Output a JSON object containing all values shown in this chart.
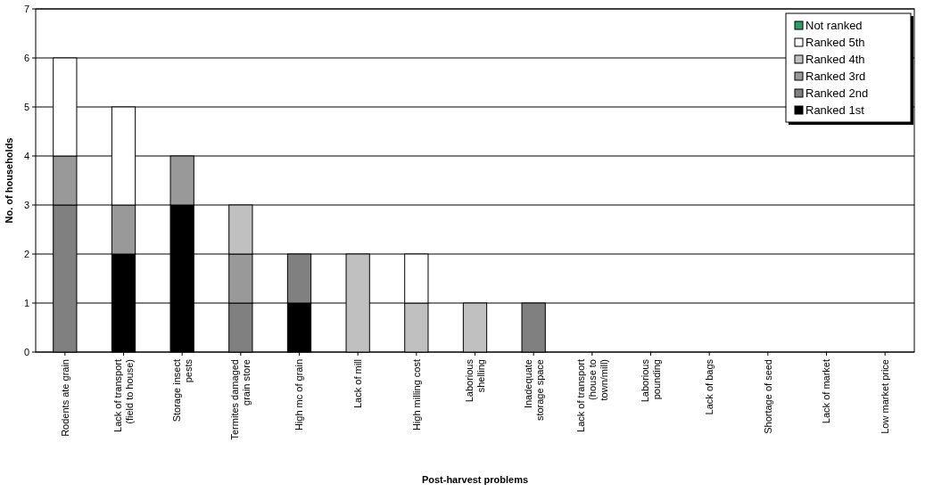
{
  "chart_data": {
    "type": "bar",
    "stacked": true,
    "xlabel": "Post-harvest problems",
    "ylabel": "No. of households",
    "categories": [
      "Rodents ate grain",
      "Lack of transport (field to house)",
      "Storage insect pests",
      "Termites damaged grain store",
      "High mc of grain",
      "Lack of mill",
      "High milling cost",
      "Laborious shelling",
      "Inadequate storage space",
      "Lack of transport (house to town/mill)",
      "Laborious pounding",
      "Lack of bags",
      "Shortage of seed",
      "Lack of market",
      "Low market price"
    ],
    "series": [
      {
        "name": "Ranked 1st",
        "color": "#000000",
        "values": [
          0,
          2,
          3,
          0,
          1,
          0,
          0,
          0,
          0,
          0,
          0,
          0,
          0,
          0,
          0
        ]
      },
      {
        "name": "Ranked 2nd",
        "color": "#808080",
        "values": [
          3,
          0,
          0,
          1,
          1,
          0,
          0,
          0,
          1,
          0,
          0,
          0,
          0,
          0,
          0
        ]
      },
      {
        "name": "Ranked 3rd",
        "color": "#999999",
        "values": [
          1,
          1,
          1,
          1,
          0,
          0,
          0,
          0,
          0,
          0,
          0,
          0,
          0,
          0,
          0
        ]
      },
      {
        "name": "Ranked 4th",
        "color": "#c0c0c0",
        "values": [
          0,
          0,
          0,
          1,
          0,
          2,
          1,
          1,
          0,
          0,
          0,
          0,
          0,
          0,
          0
        ]
      },
      {
        "name": "Ranked 5th",
        "color": "#ffffff",
        "values": [
          2,
          2,
          0,
          0,
          0,
          0,
          1,
          0,
          0,
          0,
          0,
          0,
          0,
          0,
          0
        ]
      },
      {
        "name": "Not ranked",
        "color": "#339966",
        "values": [
          0,
          0,
          0,
          0,
          0,
          0,
          0,
          0,
          0,
          0,
          0,
          0,
          0,
          0,
          0
        ]
      }
    ],
    "ylim": [
      0,
      7
    ],
    "yticks": [
      0,
      1,
      2,
      3,
      4,
      5,
      6,
      7
    ],
    "grid": "y",
    "legend": "top right"
  }
}
